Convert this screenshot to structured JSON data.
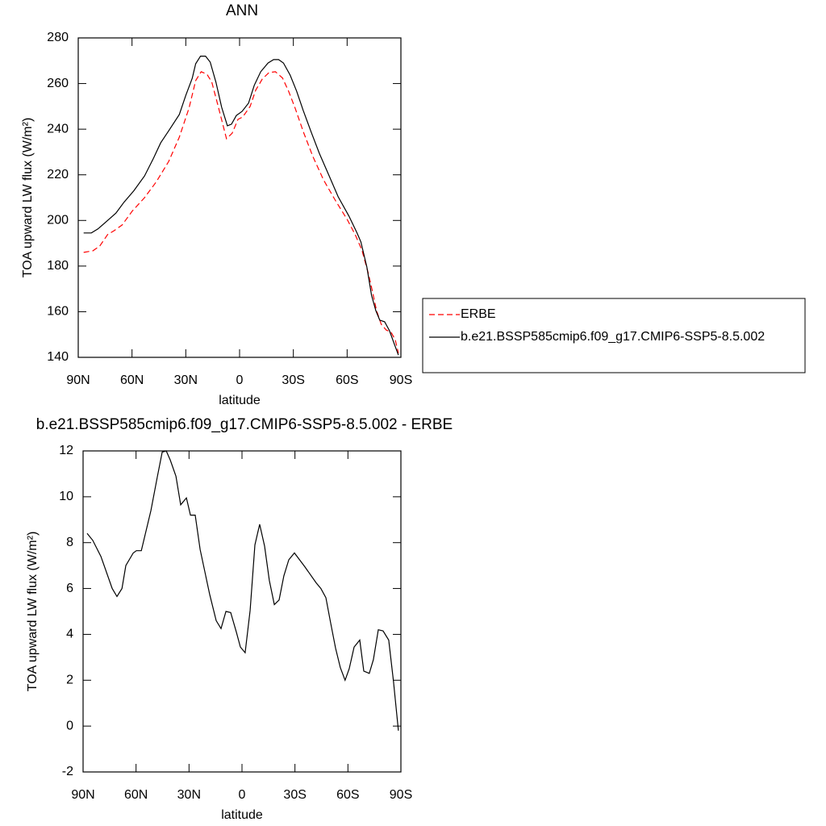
{
  "chart_data": [
    {
      "type": "line",
      "title": "ANN",
      "xlabel": "latitude",
      "ylabel": "TOA upward LW flux (W/m²)",
      "xlim": [
        90,
        -90
      ],
      "ylim": [
        140,
        280
      ],
      "xticks": [
        {
          "value": 90,
          "label": "90N"
        },
        {
          "value": 60,
          "label": "60N"
        },
        {
          "value": 30,
          "label": "30N"
        },
        0,
        {
          "value": -30,
          "label": "30S"
        },
        {
          "value": -60,
          "label": "60S"
        },
        {
          "value": -90,
          "label": "90S"
        }
      ],
      "yticks": [
        140,
        160,
        180,
        200,
        220,
        240,
        260,
        280
      ],
      "legend": "right",
      "series": [
        {
          "name": "ERBE",
          "color": "#ff0000",
          "line_style": "dashed",
          "x": [
            87,
            81.8,
            78,
            73.6,
            70,
            65.5,
            60,
            53,
            46.4,
            39.5,
            33.6,
            28.2,
            24.5,
            21.4,
            18.2,
            15.5,
            11.8,
            7.3,
            4.1,
            0.9,
            -1.8,
            -5.9,
            -9,
            -12.7,
            -16.4,
            -20,
            -24,
            -27.3,
            -31,
            -35.5,
            -40.9,
            -46.8,
            -53.6,
            -60,
            -64.5,
            -68.2,
            -71.8,
            -74,
            -76.4,
            -79,
            -81.8,
            -84.5,
            -86.8,
            -88.6
          ],
          "values": [
            186,
            186.7,
            188.8,
            193.8,
            195.5,
            198,
            204,
            210,
            217,
            225.9,
            236.5,
            249.2,
            261.3,
            265.2,
            264.1,
            260.6,
            249.6,
            235.8,
            238.3,
            244.3,
            245.4,
            250,
            257.1,
            262,
            264.8,
            265.2,
            262.4,
            256.7,
            249.2,
            239,
            228,
            217.8,
            208.6,
            200.5,
            193.8,
            187.1,
            176.8,
            169.4,
            160.5,
            154.5,
            152,
            151,
            147.8,
            141.8
          ]
        },
        {
          "name": "b.e21.BSSP585cmip6.f09_g17.CMIP6-SSP5-8.5.002",
          "color": "#000000",
          "line_style": "solid",
          "x": [
            87,
            82.7,
            79,
            73.6,
            69,
            64.5,
            59,
            53,
            48,
            44,
            39.5,
            33.6,
            30,
            26.4,
            24.5,
            21.8,
            19,
            16.4,
            13.2,
            10,
            6.8,
            4.5,
            1.8,
            -1.4,
            -5,
            -8.2,
            -11.8,
            -15.9,
            -19,
            -21.8,
            -24.5,
            -28.2,
            -31.8,
            -35.5,
            -40,
            -44.5,
            -50,
            -55,
            -61,
            -65.5,
            -67.7,
            -71,
            -73.6,
            -76,
            -78.2,
            -80.9,
            -83.6,
            -86.4,
            -88.6
          ],
          "values": [
            194.5,
            194.5,
            196.3,
            200,
            203.2,
            208,
            213,
            219.5,
            227.3,
            234,
            239.3,
            246.4,
            254.8,
            262.3,
            268.7,
            272,
            272,
            269.4,
            260.6,
            249.6,
            241.5,
            242.2,
            246,
            247.8,
            251.4,
            259.2,
            265.2,
            269,
            270.5,
            270.5,
            269,
            263.7,
            256.7,
            248.2,
            238.6,
            229.4,
            219.5,
            210.4,
            201.9,
            194.5,
            190.6,
            179.6,
            167.2,
            160.5,
            156.3,
            155.6,
            151.7,
            145.7,
            141
          ]
        }
      ]
    },
    {
      "type": "line",
      "title": "b.e21.BSSP585cmip6.f09_g17.CMIP6-SSP5-8.5.002 - ERBE",
      "xlabel": "latitude",
      "ylabel": "TOA upward LW flux (W/m²)",
      "xlim": [
        90,
        -90
      ],
      "ylim": [
        -2,
        12
      ],
      "xticks": [
        {
          "value": 90,
          "label": "90N"
        },
        {
          "value": 60,
          "label": "60N"
        },
        {
          "value": 30,
          "label": "30N"
        },
        0,
        {
          "value": -30,
          "label": "30S"
        },
        {
          "value": -60,
          "label": "60S"
        },
        {
          "value": -90,
          "label": "90S"
        }
      ],
      "yticks": [
        -2,
        0,
        2,
        4,
        6,
        8,
        10,
        12
      ],
      "color": "#000000",
      "x": [
        87.7,
        84.5,
        79.9,
        73.5,
        70.8,
        68,
        65.8,
        61.6,
        59.8,
        57,
        51.6,
        47.9,
        45.2,
        42.9,
        40.6,
        37.4,
        34.7,
        31.5,
        29.2,
        26.5,
        23.7,
        18.3,
        14.6,
        11.9,
        9.1,
        6.4,
        3.2,
        0.9,
        -1.8,
        -4.6,
        -7.3,
        -10,
        -12.8,
        -15.5,
        -18.3,
        -21,
        -23.7,
        -26.5,
        -29.7,
        -35.6,
        -42,
        -44.7,
        -47.5,
        -50.2,
        -53,
        -55.7,
        -58.4,
        -60.7,
        -63.5,
        -66.7,
        -69,
        -72.1,
        -74.4,
        -77.2,
        -79.9,
        -83.1,
        -85.8,
        -88.6
      ],
      "values": [
        8.4,
        8.1,
        7.4,
        6.0,
        5.65,
        6.0,
        7.0,
        7.55,
        7.65,
        7.65,
        9.4,
        10.9,
        11.95,
        12.0,
        11.6,
        10.9,
        9.65,
        9.95,
        9.2,
        9.2,
        7.7,
        5.75,
        4.6,
        4.25,
        5.0,
        4.95,
        4.1,
        3.45,
        3.2,
        5.05,
        7.9,
        8.8,
        7.85,
        6.35,
        5.3,
        5.5,
        6.55,
        7.25,
        7.55,
        6.95,
        6.25,
        6.0,
        5.6,
        4.5,
        3.4,
        2.55,
        2.0,
        2.5,
        3.45,
        3.75,
        2.4,
        2.3,
        2.9,
        4.2,
        4.15,
        3.75,
        1.95,
        -0.2
      ]
    }
  ]
}
